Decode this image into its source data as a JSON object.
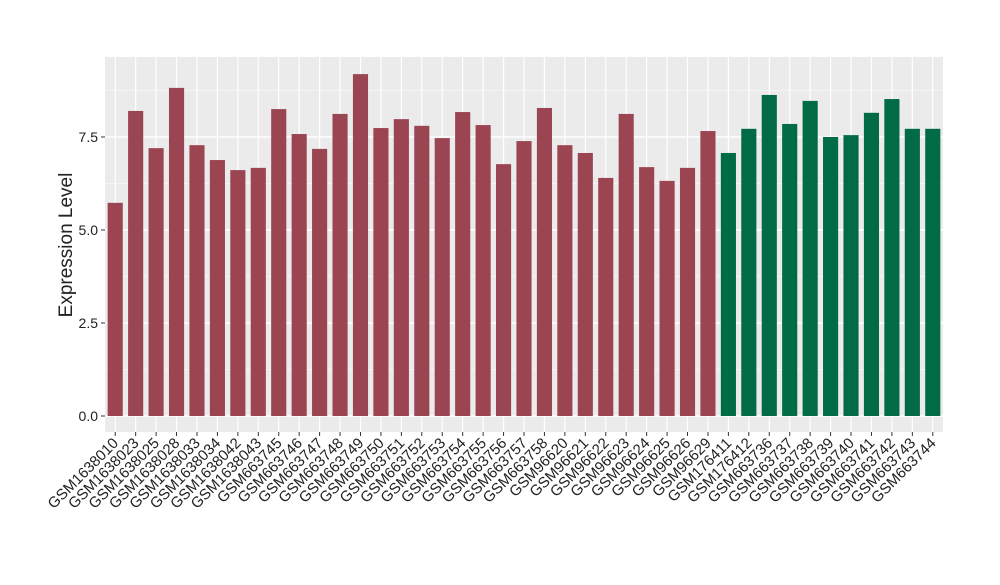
{
  "chart_data": {
    "type": "bar",
    "y_label": "Expression Level",
    "categories": [
      "GSM1638010",
      "GSM1638023",
      "GSM1638025",
      "GSM1638028",
      "GSM1638033",
      "GSM1638034",
      "GSM1638042",
      "GSM1638043",
      "GSM663745",
      "GSM663746",
      "GSM663747",
      "GSM663748",
      "GSM663749",
      "GSM663750",
      "GSM663751",
      "GSM663752",
      "GSM663753",
      "GSM663754",
      "GSM663755",
      "GSM663756",
      "GSM663757",
      "GSM663758",
      "GSM96620",
      "GSM96621",
      "GSM96622",
      "GSM96623",
      "GSM96624",
      "GSM96625",
      "GSM96626",
      "GSM96629",
      "GSM176411",
      "GSM176412",
      "GSM663736",
      "GSM663737",
      "GSM663738",
      "GSM663739",
      "GSM663740",
      "GSM663741",
      "GSM663742",
      "GSM663743",
      "GSM663744"
    ],
    "values": [
      5.73,
      8.2,
      7.2,
      8.82,
      7.28,
      6.88,
      6.61,
      6.67,
      8.25,
      7.58,
      7.18,
      8.12,
      9.19,
      7.74,
      7.98,
      7.8,
      7.47,
      8.17,
      7.82,
      6.77,
      7.39,
      8.28,
      7.28,
      7.07,
      6.4,
      8.12,
      6.69,
      6.32,
      6.67,
      7.66,
      7.07,
      7.72,
      8.63,
      7.85,
      8.47,
      7.5,
      7.55,
      8.15,
      8.52,
      7.72,
      7.72
    ],
    "colors": [
      "#9b4553",
      "#9b4553",
      "#9b4553",
      "#9b4553",
      "#9b4553",
      "#9b4553",
      "#9b4553",
      "#9b4553",
      "#9b4553",
      "#9b4553",
      "#9b4553",
      "#9b4553",
      "#9b4553",
      "#9b4553",
      "#9b4553",
      "#9b4553",
      "#9b4553",
      "#9b4553",
      "#9b4553",
      "#9b4553",
      "#9b4553",
      "#9b4553",
      "#9b4553",
      "#9b4553",
      "#9b4553",
      "#9b4553",
      "#9b4553",
      "#9b4553",
      "#9b4553",
      "#9b4553",
      "#006b45",
      "#006b45",
      "#006b45",
      "#006b45",
      "#006b45",
      "#006b45",
      "#006b45",
      "#006b45",
      "#006b45",
      "#006b45",
      "#006b45"
    ],
    "ylim": [
      -0.43,
      9.65
    ],
    "yticks": [
      {
        "value": 0,
        "label": "0.0"
      },
      {
        "value": 2.5,
        "label": "2.5"
      },
      {
        "value": 5,
        "label": "5.0"
      },
      {
        "value": 7.5,
        "label": "7.5"
      }
    ],
    "grid": true
  }
}
